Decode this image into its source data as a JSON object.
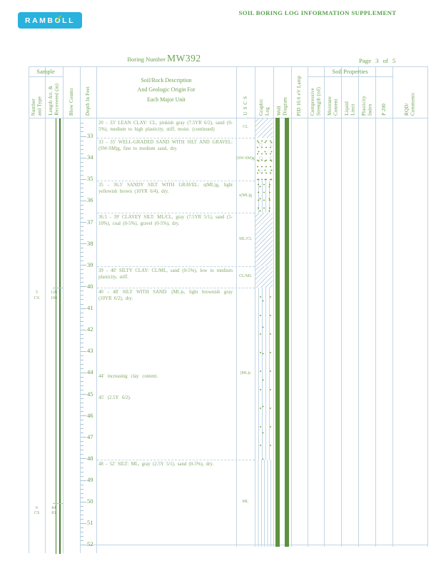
{
  "page": {
    "logo_text": "RAMBOLL",
    "title": "SOIL BORING LOG INFORMATION SUPPLEMENT",
    "boring_label": "Boring Number",
    "boring_number": "MW392",
    "page_label": "Page",
    "page_number": "3",
    "of_label": "of",
    "page_total": "5"
  },
  "colors": {
    "logo_background": "#29b2dd",
    "logo_text": "#ffffff",
    "logo_accent": "#8dc63f",
    "title_green": "#56a04c",
    "header_green": "#6da052",
    "body_green": "#82a968",
    "depth_number_green": "#679c4b",
    "grid_blue": "#c2d5e2",
    "tick_blue": "#a5c3d3",
    "well_bar_green": "#5f9140",
    "sample_line_green": "#47812f",
    "speckle_green": "#6f9c40"
  },
  "table": {
    "header": {
      "groups": [
        {
          "id": "sample",
          "label": "Sample"
        },
        {
          "id": "soil_properties",
          "label": "Soil Properties"
        }
      ],
      "columns": [
        {
          "id": "number_type",
          "label": "Number\nand Type"
        },
        {
          "id": "length_recovered",
          "label": "Length Att. &\nRecovered (in)"
        },
        {
          "id": "blow_counts",
          "label": "Blow Counts"
        },
        {
          "id": "depth",
          "label": "Depth In Feet"
        },
        {
          "id": "description",
          "label": "Soil/Rock Description\nAnd Geologic Origin For\nEach Major Unit"
        },
        {
          "id": "uscs",
          "label": "USCS"
        },
        {
          "id": "graphic_log",
          "label": "Graphic\nLog"
        },
        {
          "id": "well_diagram",
          "label": "Well\nDiagram"
        },
        {
          "id": "pid",
          "label": "PID 10.6 eV Lamp"
        },
        {
          "id": "compressive_strength",
          "label": "Compressive\nStrength (tsf)"
        },
        {
          "id": "moisture_content",
          "label": "Moisture\nContent"
        },
        {
          "id": "liquid_limit",
          "label": "Liquid\nLimit"
        },
        {
          "id": "plasticity_index",
          "label": "Plasticity\nIndex"
        },
        {
          "id": "p200",
          "label": "P 200"
        },
        {
          "id": "rqd_comments",
          "label": "RQD/\nComments"
        }
      ]
    },
    "depth_ruler": {
      "unit": "feet",
      "labels": [
        33,
        34,
        35,
        36,
        37,
        38,
        39,
        40,
        41,
        42,
        43,
        44,
        45,
        46,
        47,
        48,
        49,
        50,
        51,
        52
      ]
    },
    "units": [
      {
        "depth_from": 20,
        "depth_to": 33,
        "uscs": "CL",
        "pattern": "diagonal",
        "description": "20 - 33' LEAN CLAY: CL, pinkish gray (7.5YR 6/2), sand (0-5%), medium to high plasticity, stiff, moist. (continued)"
      },
      {
        "depth_from": 33,
        "depth_to": 35,
        "uscs": "(SW-SM)g",
        "pattern": "speckle",
        "description": "33 - 35' WELL-GRADED SAND WITH SILT AND GRAVEL: (SW-SM)g, fine to medium sand, dry."
      },
      {
        "depth_from": 35,
        "depth_to": 36.5,
        "uscs": "s(ML)g",
        "pattern": "vlines_dots",
        "description": "35 - 36.5' SANDY SILT WITH GRAVEL: s(ML)g, light yellowish brown (10YR 6/4), dry."
      },
      {
        "depth_from": 36.5,
        "depth_to": 39,
        "uscs": "ML/CL",
        "pattern": "diagonal",
        "description": "36.5 - 39' CLAYEY SILT: ML/CL, gray (7.5YR 5/1), sand (5-10%), coal (0-5%), gravel (0-5%), dry."
      },
      {
        "depth_from": 39,
        "depth_to": 40,
        "uscs": "CL/ML",
        "pattern": "diagonal",
        "description": "39 - 40' SILTY CLAY: CL/ML, sand (0-5%), low to medium plasticity, stiff."
      },
      {
        "depth_from": 40,
        "depth_to": 48,
        "uscs": "(ML)s",
        "pattern": "vlines_sparse",
        "description": "40 - 48' SILT WITH SAND: (ML)s, light brownish gray (10YR 6/2), dry.",
        "notes": [
          {
            "depth": 44,
            "text": "44' increasing clay content."
          },
          {
            "depth": 45,
            "text": "45' (2.5Y 6/2)."
          }
        ]
      },
      {
        "depth_from": 48,
        "depth_to": 52,
        "uscs": "ML",
        "pattern": "vlines",
        "description": "48 - 52' SILT: ML, gray (2.5Y 5/1), sand (0-5%), dry."
      }
    ],
    "samples": [
      {
        "number": "5",
        "type": "CS",
        "length_attempted": "120",
        "length_recovered": "108",
        "depth": 40
      },
      {
        "number": "6",
        "type": "CS",
        "length_attempted": "84",
        "length_recovered": "81",
        "depth": 50
      }
    ]
  }
}
